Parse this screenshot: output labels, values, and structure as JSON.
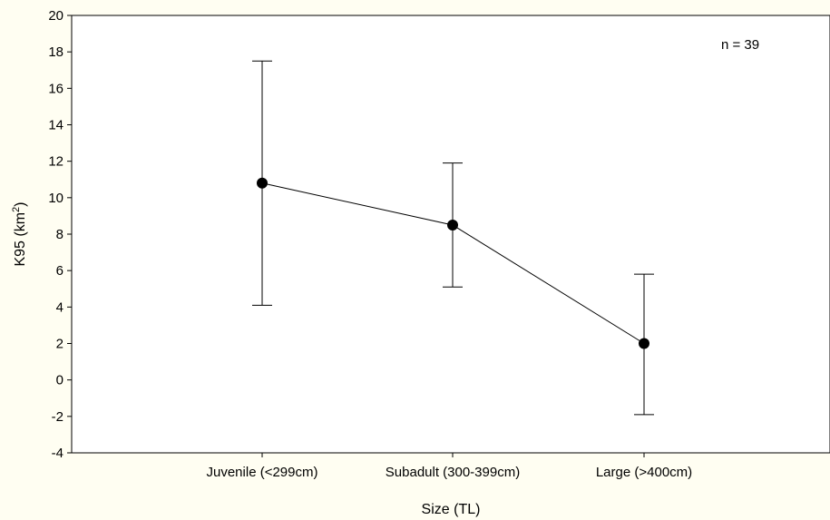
{
  "chart_data": {
    "type": "line",
    "categories": [
      "Juvenile (<299cm)",
      "Subadult (300-399cm)",
      "Large (>400cm)"
    ],
    "series": [
      {
        "values": [
          10.8,
          8.5,
          2.0
        ],
        "error_low": [
          4.1,
          5.1,
          -1.9
        ],
        "error_high": [
          17.5,
          11.9,
          5.8
        ]
      }
    ],
    "xlabel": "Size (TL)",
    "ylabel": {
      "main": "K95 (km",
      "sup": "2",
      "close": ")"
    },
    "ylim": [
      -4,
      20
    ],
    "yticks": [
      -4,
      -2,
      0,
      2,
      4,
      6,
      8,
      10,
      12,
      14,
      16,
      18,
      20
    ],
    "annotation": "n = 39",
    "grid": false,
    "legend": "none",
    "colors": {
      "background": "#fffef2",
      "line": "#000000"
    }
  }
}
